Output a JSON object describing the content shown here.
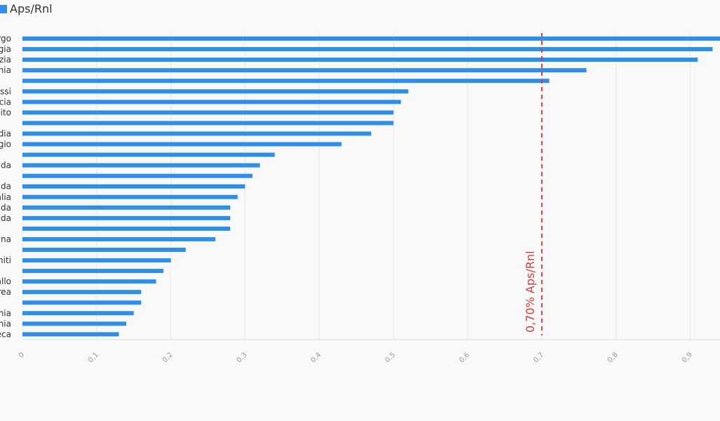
{
  "legend": {
    "label": "Aps/Rnl",
    "color": "#2f8ee8"
  },
  "chart_data": {
    "type": "bar",
    "orientation": "horizontal",
    "categories": [
      "rgo",
      "gia",
      "zia",
      "nia",
      "",
      "assi",
      "cia",
      "nito",
      "",
      "dia",
      "gio",
      "",
      "ada",
      "",
      "ada",
      "alia",
      "nda",
      "nda",
      "",
      "gna",
      "",
      "niti",
      "",
      "allo",
      "rea",
      "",
      "nia",
      "hia",
      "eca"
    ],
    "series": [
      {
        "name": "Aps/Rnl",
        "color": "#2f8ee8",
        "values": [
          0.94,
          0.93,
          0.91,
          0.76,
          0.71,
          0.52,
          0.51,
          0.5,
          0.5,
          0.47,
          0.43,
          0.34,
          0.32,
          0.31,
          0.3,
          0.29,
          0.28,
          0.28,
          0.28,
          0.26,
          0.22,
          0.2,
          0.19,
          0.18,
          0.16,
          0.16,
          0.15,
          0.14,
          0.13
        ]
      }
    ],
    "xlim": [
      0,
      0.94
    ],
    "xticks": [
      "0",
      "0,1",
      "0,2",
      "0,3",
      "0,4",
      "0,5",
      "0,6",
      "0,7",
      "0,8",
      "0,9"
    ],
    "xtick_values": [
      0,
      0.1,
      0.2,
      0.3,
      0.4,
      0.5,
      0.6,
      0.7,
      0.8,
      0.9
    ],
    "grid": true,
    "legend_position": "top-left",
    "reference_line": {
      "value": 0.7,
      "label": "0,70% Aps/Rnl",
      "color": "#d93a3a"
    }
  }
}
